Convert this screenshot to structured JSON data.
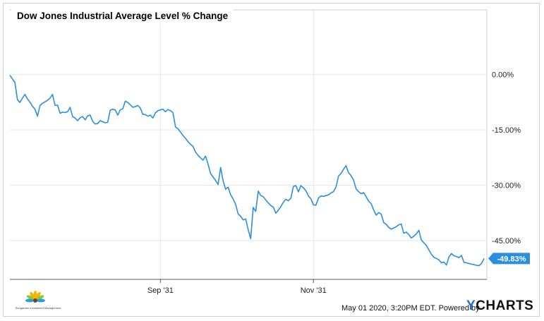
{
  "header": {
    "title": "Dow Jones Industrial Average Level % Change"
  },
  "footer": {
    "timestamp": "May 01 2020, 3:20PM EDT.",
    "powered_by": "Powered by",
    "brand_y": "Y",
    "brand_rest": "CHARTS"
  },
  "logo": {
    "name": "Sungarden Investment Management",
    "icon": "sunflower-logo-icon"
  },
  "colors": {
    "line": "#2b8fde",
    "grid": "#e6e6e6",
    "badge": "#2b8fde"
  },
  "chart_data": {
    "type": "line",
    "title": "Dow Jones Industrial Average Level % Change",
    "ylim": [
      -55.5,
      17.5
    ],
    "yticks": [
      0,
      -15,
      -30,
      -45
    ],
    "ytick_labels": [
      "0.00%",
      "-15.00%",
      "-30.00%",
      "-45.00%"
    ],
    "xticks": [
      "Sep '31",
      "Nov '31"
    ],
    "grid": true,
    "last_value_label": "-49.83%",
    "series": [
      {
        "values": [
          -0.2,
          -1.2,
          -2.1,
          -6.8,
          -7.6,
          -6.4,
          -5.4,
          -6.6,
          -7.5,
          -8.6,
          -9.4,
          -11.3,
          -8.4,
          -7.8,
          -7.4,
          -7.0,
          -6.4,
          -5.4,
          -8.4,
          -8.3,
          -10.5,
          -10.2,
          -10.3,
          -10.1,
          -8.9,
          -11.4,
          -11.8,
          -12.5,
          -11.7,
          -11.4,
          -12.3,
          -11.2,
          -11.0,
          -12.7,
          -13.4,
          -13.3,
          -12.5,
          -12.8,
          -13.1,
          -12.9,
          -9.7,
          -9.4,
          -9.6,
          -11.0,
          -9.6,
          -9.3,
          -7.2,
          -7.6,
          -8.2,
          -8.9,
          -8.7,
          -8.4,
          -9.1,
          -10.8,
          -10.9,
          -11.3,
          -11.0,
          -11.8,
          -10.4,
          -9.8,
          -9.6,
          -9.4,
          -10.1,
          -9.5,
          -9.8,
          -10.3,
          -14.2,
          -14.7,
          -15.6,
          -16.5,
          -17.3,
          -18.2,
          -18.9,
          -19.5,
          -21.0,
          -21.9,
          -22.6,
          -23.2,
          -22.1,
          -24.3,
          -26.8,
          -27.8,
          -28.7,
          -29.8,
          -25.2,
          -28.8,
          -31.1,
          -30.5,
          -32.6,
          -33.7,
          -35.2,
          -37.8,
          -38.4,
          -39.4,
          -39.1,
          -42.1,
          -44.5,
          -36.0,
          -37.1,
          -31.6,
          -32.8,
          -33.1,
          -34.0,
          -34.8,
          -35.5,
          -35.9,
          -37.6,
          -36.8,
          -35.8,
          -34.6,
          -33.8,
          -34.2,
          -33.5,
          -30.3,
          -30.1,
          -31.8,
          -30.1,
          -30.7,
          -31.5,
          -32.9,
          -33.7,
          -35.3,
          -35.4,
          -33.5,
          -32.9,
          -33.0,
          -32.8,
          -32.6,
          -32.1,
          -31.7,
          -30.5,
          -27.5,
          -26.8,
          -25.7,
          -24.7,
          -26.6,
          -27.4,
          -28.6,
          -31.0,
          -31.7,
          -32.3,
          -32.0,
          -33.1,
          -34.3,
          -35.0,
          -36.7,
          -38.1,
          -37.4,
          -37.8,
          -40.1,
          -40.6,
          -41.4,
          -41.9,
          -41.6,
          -41.2,
          -40.7,
          -40.5,
          -43.0,
          -42.7,
          -43.3,
          -44.3,
          -43.8,
          -43.2,
          -42.2,
          -44.8,
          -45.6,
          -46.3,
          -47.5,
          -48.7,
          -49.5,
          -49.8,
          -50.2,
          -51.0,
          -50.8,
          -51.6,
          -49.5,
          -48.5,
          -49.1,
          -49.3,
          -49.6,
          -49.0,
          -50.9,
          -51.0,
          -51.2,
          -51.4,
          -51.5,
          -51.7,
          -51.8,
          -51.2,
          -49.83
        ]
      }
    ]
  }
}
